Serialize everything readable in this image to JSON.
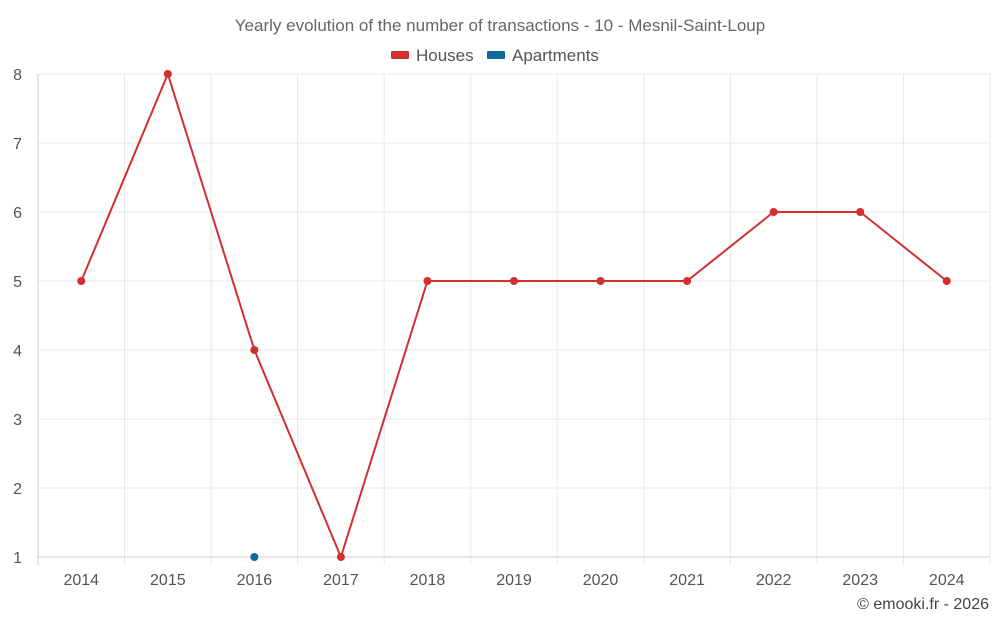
{
  "chart_data": {
    "type": "line",
    "title": "Yearly evolution of the number of transactions - 10 - Mesnil-Saint-Loup",
    "categories": [
      "2014",
      "2015",
      "2016",
      "2017",
      "2018",
      "2019",
      "2020",
      "2021",
      "2022",
      "2023",
      "2024"
    ],
    "series": [
      {
        "name": "Houses",
        "color": "#d32f2f",
        "values": [
          5,
          8,
          4,
          1,
          5,
          5,
          5,
          5,
          6,
          6,
          5
        ]
      },
      {
        "name": "Apartments",
        "color": "#0d6a9c",
        "values": [
          null,
          null,
          1,
          null,
          null,
          null,
          null,
          null,
          null,
          null,
          null
        ]
      }
    ],
    "yticks": [
      1,
      2,
      3,
      4,
      5,
      6,
      7,
      8
    ],
    "ylim": [
      1,
      8
    ],
    "xlabel": "",
    "ylabel": "",
    "grid": true,
    "legend_position": "top-center"
  },
  "credit": "© emooki.fr - 2026"
}
